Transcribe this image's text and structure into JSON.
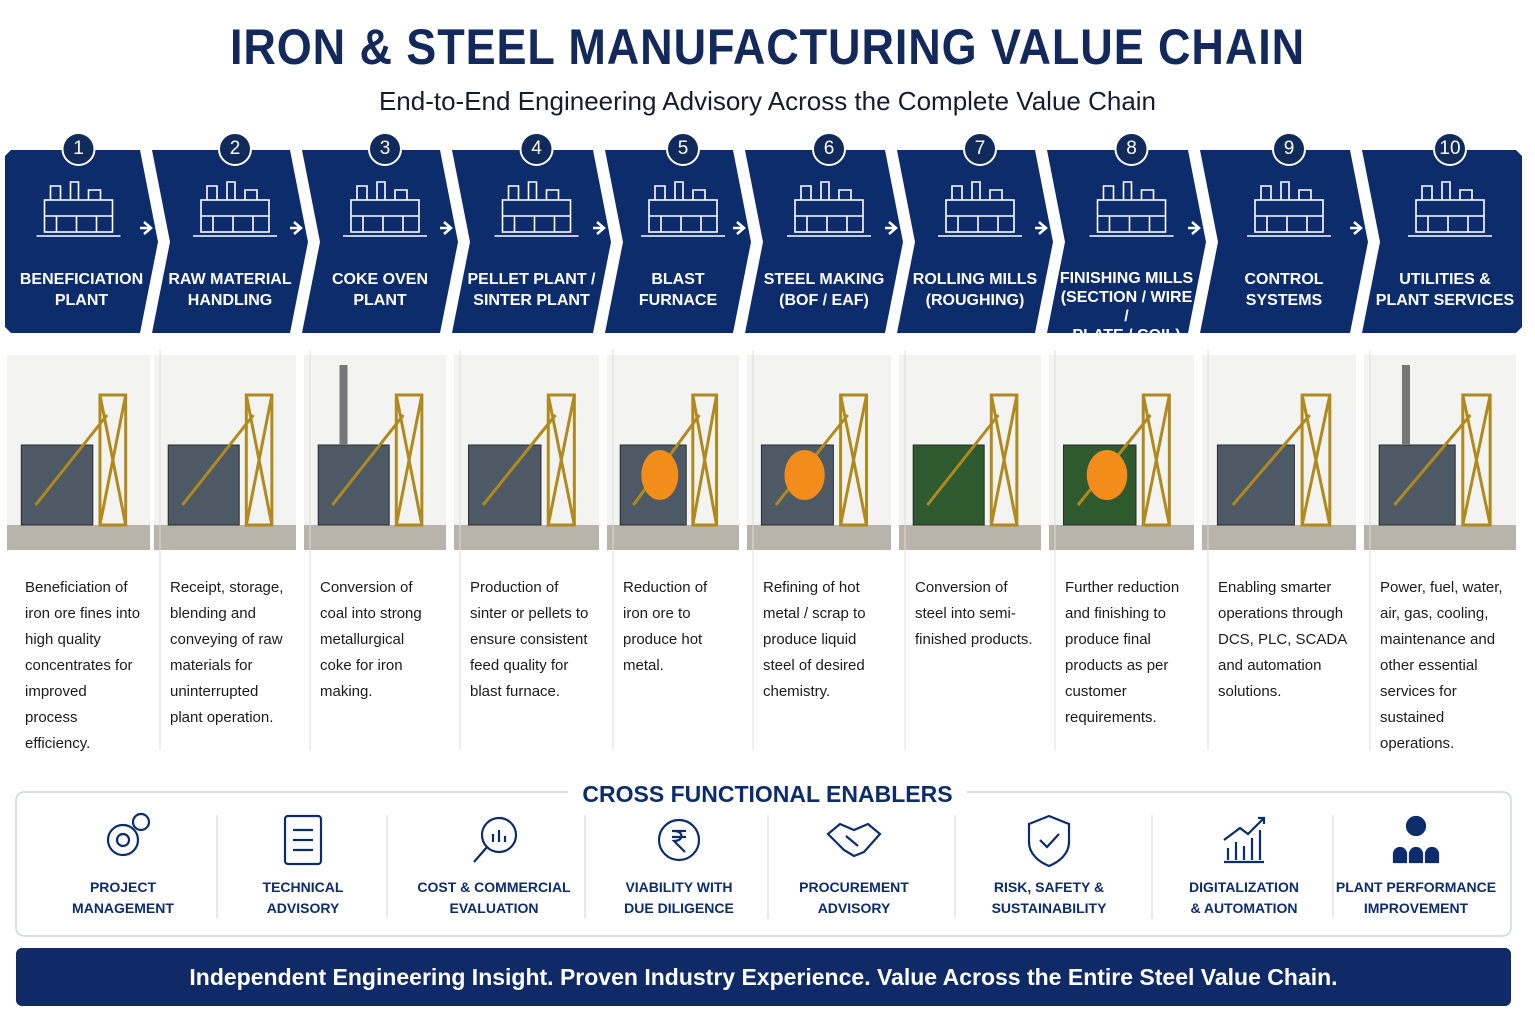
{
  "header": {
    "title": "IRON & STEEL MANUFACTURING VALUE CHAIN",
    "subtitle": "End-to-End Engineering Advisory Across the Complete Value Chain"
  },
  "stages": [
    {
      "number": 1,
      "label": [
        "BENEFICIATION",
        "PLANT"
      ],
      "description": "Beneficiation of iron ore fines into high quality concentrates for improved process efficiency."
    },
    {
      "number": 2,
      "label": [
        "RAW MATERIAL",
        "HANDLING"
      ],
      "description": "Receipt, storage, blending and conveying of raw materials for uninterrupted plant operation."
    },
    {
      "number": 3,
      "label": [
        "COKE OVEN",
        "PLANT"
      ],
      "description": "Conversion of coal into strong metallurgical coke for iron making."
    },
    {
      "number": 4,
      "label": [
        "PELLET PLANT /",
        "SINTER PLANT"
      ],
      "description": "Production of sinter or pellets to ensure consistent feed quality for blast furnace."
    },
    {
      "number": 5,
      "label": [
        "BLAST",
        "FURNACE"
      ],
      "description": "Reduction of iron ore to produce hot metal."
    },
    {
      "number": 6,
      "label": [
        "STEEL MAKING",
        "(BOF / EAF)"
      ],
      "description": "Refining of hot metal / scrap to produce liquid steel of desired chemistry."
    },
    {
      "number": 7,
      "label": [
        "ROLLING MILLS",
        "(ROUGHING)"
      ],
      "description": "Conversion of steel into semi-finished products."
    },
    {
      "number": 8,
      "label": [
        "FINISHING MILLS",
        "(SECTION / WIRE /",
        "PLATE / COIL)"
      ],
      "description": "Further reduction and finishing to produce final products as per customer requirements."
    },
    {
      "number": 9,
      "label": [
        "CONTROL",
        "SYSTEMS"
      ],
      "description": "Enabling smarter operations through DCS, PLC, SCADA and automation solutions."
    },
    {
      "number": 10,
      "label": [
        "UTILITIES &",
        "PLANT SERVICES"
      ],
      "description": "Power, fuel, water, air, gas, cooling, maintenance and other essential services for sustained operations."
    }
  ],
  "enablers": {
    "title": "CROSS FUNCTIONAL ENABLERS",
    "items": [
      {
        "label": [
          "PROJECT",
          "MANAGEMENT"
        ]
      },
      {
        "label": [
          "TECHNICAL",
          "ADVISORY"
        ]
      },
      {
        "label": [
          "COST & COMMERCIAL",
          "EVALUATION"
        ]
      },
      {
        "label": [
          "VIABILITY WITH",
          "DUE DILIGENCE"
        ]
      },
      {
        "label": [
          "PROCUREMENT",
          "ADVISORY"
        ]
      },
      {
        "label": [
          "RISK, SAFETY &",
          "SUSTAINABILITY"
        ]
      },
      {
        "label": [
          "DIGITALIZATION",
          "& AUTOMATION"
        ]
      },
      {
        "label": [
          "PLANT PERFORMANCE",
          "IMPROVEMENT"
        ]
      }
    ]
  },
  "footer": {
    "tagline": "Independent Engineering Insight. Proven Industry Experience. Value Across the Entire Steel Value Chain."
  }
}
